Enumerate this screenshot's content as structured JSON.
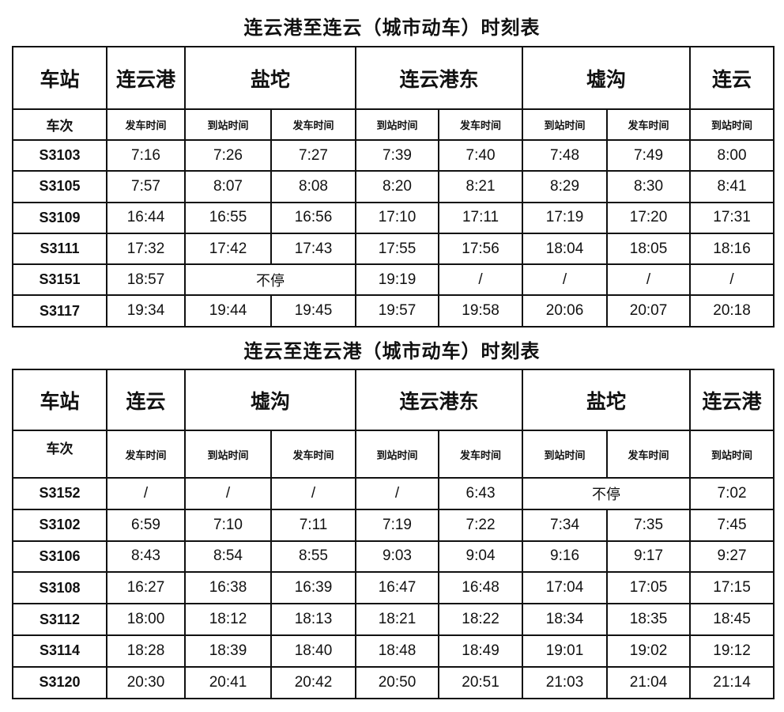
{
  "tables": [
    {
      "title": "连云港至连云（城市动车）时刻表",
      "station_label": "车站",
      "train_label": "车次",
      "stations": [
        "连云港",
        "盐坨",
        "连云港东",
        "墟沟",
        "连云"
      ],
      "subheaders": [
        "发车时间",
        "到站时间",
        "发车时间",
        "到站时间",
        "发车时间",
        "到站时间",
        "发车时间",
        "到站时间"
      ],
      "rows": [
        {
          "train": "S3103",
          "cells": [
            "7:16",
            "7:26",
            "7:27",
            "7:39",
            "7:40",
            "7:48",
            "7:49",
            "8:00"
          ]
        },
        {
          "train": "S3105",
          "cells": [
            "7:57",
            "8:07",
            "8:08",
            "8:20",
            "8:21",
            "8:29",
            "8:30",
            "8:41"
          ]
        },
        {
          "train": "S3109",
          "cells": [
            "16:44",
            "16:55",
            "16:56",
            "17:10",
            "17:11",
            "17:19",
            "17:20",
            "17:31"
          ]
        },
        {
          "train": "S3111",
          "cells": [
            "17:32",
            "17:42",
            "17:43",
            "17:55",
            "17:56",
            "18:04",
            "18:05",
            "18:16"
          ]
        },
        {
          "train": "S3151",
          "cells": [
            "18:57",
            "不停",
            "19:19",
            "/",
            "/",
            "/",
            "/"
          ]
        },
        {
          "train": "S3117",
          "cells": [
            "19:34",
            "19:44",
            "19:45",
            "19:57",
            "19:58",
            "20:06",
            "20:07",
            "20:18"
          ]
        }
      ]
    },
    {
      "title": "连云至连云港（城市动车）时刻表",
      "station_label": "车站",
      "train_label": "车次",
      "stations": [
        "连云",
        "墟沟",
        "连云港东",
        "盐坨",
        "连云港"
      ],
      "subheaders": [
        "发车时间",
        "到站时间",
        "发车时间",
        "到站时间",
        "发车时间",
        "到站时间",
        "发车时间",
        "到站时间"
      ],
      "rows": [
        {
          "train": "S3152",
          "cells": [
            "/",
            "/",
            "/",
            "/",
            "6:43",
            "不停",
            "7:02"
          ]
        },
        {
          "train": "S3102",
          "cells": [
            "6:59",
            "7:10",
            "7:11",
            "7:19",
            "7:22",
            "7:34",
            "7:35",
            "7:45"
          ]
        },
        {
          "train": "S3106",
          "cells": [
            "8:43",
            "8:54",
            "8:55",
            "9:03",
            "9:04",
            "9:16",
            "9:17",
            "9:27"
          ]
        },
        {
          "train": "S3108",
          "cells": [
            "16:27",
            "16:38",
            "16:39",
            "16:47",
            "16:48",
            "17:04",
            "17:05",
            "17:15"
          ]
        },
        {
          "train": "S3112",
          "cells": [
            "18:00",
            "18:12",
            "18:13",
            "18:21",
            "18:22",
            "18:34",
            "18:35",
            "18:45"
          ]
        },
        {
          "train": "S3114",
          "cells": [
            "18:28",
            "18:39",
            "18:40",
            "18:48",
            "18:49",
            "19:01",
            "19:02",
            "19:12"
          ]
        },
        {
          "train": "S3120",
          "cells": [
            "20:30",
            "20:41",
            "20:42",
            "20:50",
            "20:51",
            "21:03",
            "21:04",
            "21:14"
          ]
        }
      ]
    }
  ],
  "nonstop_label": "不停"
}
